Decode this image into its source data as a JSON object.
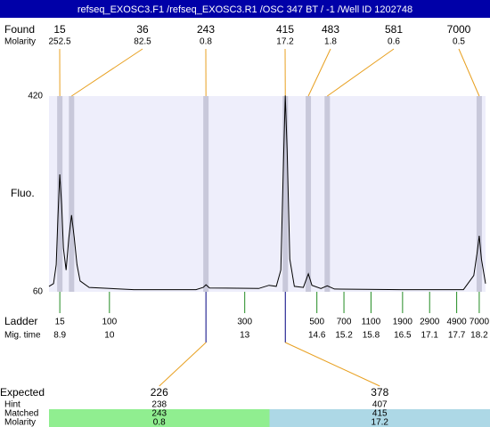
{
  "chart_data": {
    "type": "line",
    "title": "refseq_EXOSC3.F1 /refseq_EXOSC3.R1 /OSC 347 BT / -1 /Well ID 1202748",
    "ylabel": "Fluo.",
    "ylim": [
      60,
      420
    ],
    "yticks": [
      60,
      420
    ],
    "xlim": [
      8.66,
      18.34
    ],
    "series": [
      {
        "color": "#000000",
        "x": [
          8.66,
          8.76,
          8.82,
          8.86,
          8.9,
          8.94,
          8.98,
          9.04,
          9.1,
          9.16,
          9.22,
          9.28,
          9.35,
          9.55,
          10.54,
          11.92,
          12.08,
          12.14,
          12.22,
          13.31,
          13.54,
          13.7,
          13.8,
          13.86,
          13.9,
          13.94,
          14.0,
          14.1,
          14.3,
          14.41,
          14.49,
          14.69,
          14.83,
          14.99,
          16.47,
          17.85,
          18.08,
          18.15,
          18.2,
          18.25,
          18.34
        ],
        "values": [
          70,
          75,
          110,
          200,
          276,
          220,
          140,
          100,
          160,
          201,
          160,
          110,
          80,
          68,
          64,
          64,
          68,
          73,
          67,
          66,
          72,
          70,
          100,
          300,
          421,
          320,
          120,
          70,
          68,
          93,
          72,
          66,
          71,
          65,
          64,
          64,
          90,
          130,
          163,
          120,
          75
        ]
      }
    ],
    "found": {
      "label": "Found",
      "sublabel": "Molarity",
      "color": "#e8a020",
      "band_color": "#c8c8da",
      "sizes": [
        15,
        36,
        243,
        415,
        483,
        581,
        7000
      ],
      "molarity": [
        252.5,
        82.5,
        0.8,
        17.2,
        1.8,
        0.6,
        0.5
      ],
      "x": [
        8.9,
        9.16,
        12.14,
        13.9,
        14.41,
        14.83,
        18.2
      ]
    },
    "ladder": {
      "label": "Ladder",
      "sublabel": "Mig. time",
      "color": "#228b22",
      "sizes": [
        15,
        100,
        300,
        500,
        700,
        1100,
        1900,
        2900,
        4900,
        7000
      ],
      "times": [
        8.9,
        10,
        13,
        14.6,
        15.2,
        15.8,
        16.5,
        17.1,
        17.7,
        18.2
      ]
    },
    "expected": {
      "label": "Expected",
      "hint_label": "Hint",
      "matched_label": "Matched",
      "molarity_label": "Molarity",
      "values": [
        226,
        378
      ],
      "hint": [
        238,
        407
      ],
      "matched": [
        243,
        415
      ],
      "molarity": [
        0.8,
        17.2
      ],
      "colors": [
        "#90ee90",
        "#add8e6"
      ],
      "tick_color": "#000080"
    }
  }
}
